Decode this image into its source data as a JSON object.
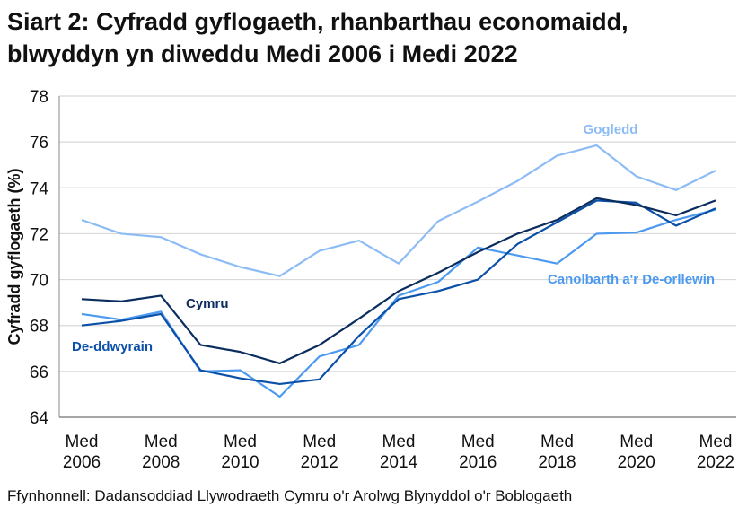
{
  "chart_data": {
    "type": "line",
    "title_line1": "Siart 2: Cyfradd gyflogaeth, rhanbarthau economaidd,",
    "title_line2": "blwyddyn yn diweddu Medi 2006 i Medi 2022",
    "ylabel": "Cyfradd gyflogaeth (%)",
    "xlabel": "",
    "ylim": [
      64,
      78
    ],
    "yticks": [
      64,
      66,
      68,
      70,
      72,
      74,
      76,
      78
    ],
    "x": [
      2006,
      2007,
      2008,
      2009,
      2010,
      2011,
      2012,
      2013,
      2014,
      2015,
      2016,
      2017,
      2018,
      2019,
      2020,
      2021,
      2022
    ],
    "xticks": [
      {
        "year": 2006,
        "line1": "Med",
        "line2": "2006"
      },
      {
        "year": 2008,
        "line1": "Med",
        "line2": "2008"
      },
      {
        "year": 2010,
        "line1": "Med",
        "line2": "2010"
      },
      {
        "year": 2012,
        "line1": "Med",
        "line2": "2012"
      },
      {
        "year": 2014,
        "line1": "Med",
        "line2": "2014"
      },
      {
        "year": 2016,
        "line1": "Med",
        "line2": "2016"
      },
      {
        "year": 2018,
        "line1": "Med",
        "line2": "2018"
      },
      {
        "year": 2020,
        "line1": "Med",
        "line2": "2020"
      },
      {
        "year": 2022,
        "line1": "Med",
        "line2": "2022"
      }
    ],
    "grid": "horizontal",
    "series": [
      {
        "name": "Gogledd",
        "color": "#8dbcf5",
        "values": [
          72.6,
          72.0,
          71.85,
          71.1,
          70.55,
          70.15,
          71.25,
          71.7,
          70.7,
          72.55,
          73.4,
          74.3,
          75.4,
          75.85,
          74.5,
          73.9,
          74.75
        ]
      },
      {
        "name": "Canolbarth a'r De-orllewin",
        "color": "#4c9af0",
        "values": [
          68.5,
          68.25,
          68.6,
          66.0,
          66.05,
          64.9,
          66.65,
          67.15,
          69.3,
          69.9,
          71.4,
          71.05,
          70.7,
          72.0,
          72.05,
          72.6,
          73.05
        ]
      },
      {
        "name": "De-ddwyrain",
        "color": "#0a4fa8",
        "values": [
          68.0,
          68.2,
          68.5,
          66.05,
          65.7,
          65.45,
          65.65,
          67.55,
          69.15,
          69.5,
          70.0,
          71.55,
          72.5,
          73.45,
          73.35,
          72.35,
          73.1
        ]
      },
      {
        "name": "Cymru",
        "color": "#0b2d5e",
        "values": [
          69.15,
          69.05,
          69.3,
          67.15,
          66.85,
          66.35,
          67.15,
          68.3,
          69.5,
          70.3,
          71.2,
          72.0,
          72.6,
          73.55,
          73.25,
          72.8,
          73.45
        ]
      }
    ]
  },
  "source": "Ffynhonnell: Dadansoddiad Llywodraeth Cymru o'r Arolwg Blynyddol o'r Boblogaeth"
}
